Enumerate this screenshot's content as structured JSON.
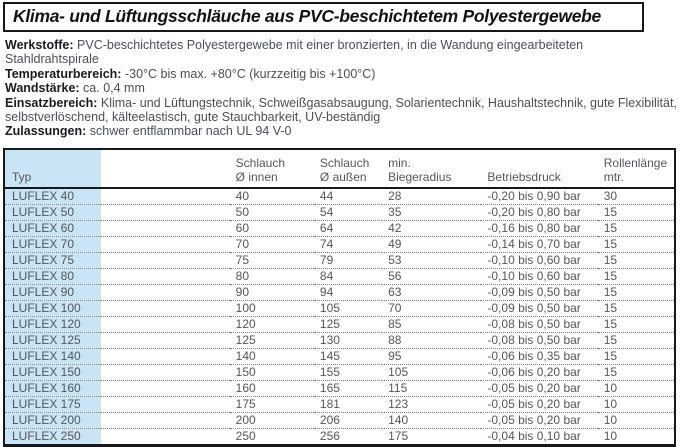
{
  "title": "Klima- und Lüftungsschläuche aus PVC-beschichtetem Polyestergewebe",
  "specs": [
    {
      "label": "Werkstoffe:",
      "text": "PVC-beschichtetes Polyestergewebe mit einer bronzierten, in die Wandung eingearbeiteten Stahldrahtspirale"
    },
    {
      "label": "Temperaturbereich:",
      "text": "-30°C bis max. +80°C (kurzzeitig bis +100°C)"
    },
    {
      "label": "Wandstärke:",
      "text": "ca. 0,4 mm"
    },
    {
      "label": "Einsatzbereich:",
      "text": "Klima- und Lüftungstechnik, Schweißgasabsaugung, Solarientechnik, Haushaltstechnik, gute Flexibilität, selbstverlöschend, kälteelastisch, gute Stauchbarkeit, UV-beständig"
    },
    {
      "label": "Zulassungen:",
      "text": "schwer entflammbar nach UL 94 V-0"
    }
  ],
  "table": {
    "headers": [
      {
        "line1": "",
        "line2": "Typ"
      },
      {
        "line1": "Schlauch",
        "line2": "Ø innen"
      },
      {
        "line1": "Schlauch",
        "line2": "Ø außen"
      },
      {
        "line1": "min.",
        "line2": "Biegeradius"
      },
      {
        "line1": "",
        "line2": "Betriebsdruck"
      },
      {
        "line1": "Rollenlänge",
        "line2": "mtr."
      }
    ],
    "rows": [
      [
        "LUFLEX 40",
        "40",
        "44",
        "28",
        "-0,20 bis 0,90 bar",
        "30"
      ],
      [
        "LUFLEX 50",
        "50",
        "54",
        "35",
        "-0,20 bis 0,80 bar",
        "15"
      ],
      [
        "LUFLEX 60",
        "60",
        "64",
        "42",
        "-0,16 bis 0,80 bar",
        "15"
      ],
      [
        "LUFLEX 70",
        "70",
        "74",
        "49",
        "-0,14 bis 0,70 bar",
        "15"
      ],
      [
        "LUFLEX 75",
        "75",
        "79",
        "53",
        "-0,10 bis 0,60 bar",
        "15"
      ],
      [
        "LUFLEX 80",
        "80",
        "84",
        "56",
        "-0,10 bis 0,60 bar",
        "15"
      ],
      [
        "LUFLEX 90",
        "90",
        "94",
        "63",
        "-0,09 bis 0,50 bar",
        "15"
      ],
      [
        "LUFLEX 100",
        "100",
        "105",
        "70",
        "-0,09 bis 0,50 bar",
        "15"
      ],
      [
        "LUFLEX 120",
        "120",
        "125",
        "85",
        "-0,08 bis 0,50 bar",
        "15"
      ],
      [
        "LUFLEX 125",
        "125",
        "130",
        "88",
        "-0,08 bis 0,50 bar",
        "15"
      ],
      [
        "LUFLEX 140",
        "140",
        "145",
        "95",
        "-0,06 bis 0,35 bar",
        "15"
      ],
      [
        "LUFLEX 150",
        "150",
        "155",
        "105",
        "-0,06 bis 0,20 bar",
        "15"
      ],
      [
        "LUFLEX 160",
        "160",
        "165",
        "115",
        "-0,05 bis 0,20 bar",
        "10"
      ],
      [
        "LUFLEX 175",
        "175",
        "181",
        "123",
        "-0,05 bis 0,20 bar",
        "10"
      ],
      [
        "LUFLEX 200",
        "200",
        "206",
        "140",
        "-0,05 bis 0,20 bar",
        "10"
      ],
      [
        "LUFLEX 250",
        "250",
        "256",
        "175",
        "-0,04 bis 0,10 bar",
        "10"
      ]
    ]
  },
  "colors": {
    "accent_blue": "#c9e5f5",
    "border_black": "#17181b",
    "text_gray": "#54575c",
    "label_black": "#1a1b1e"
  }
}
